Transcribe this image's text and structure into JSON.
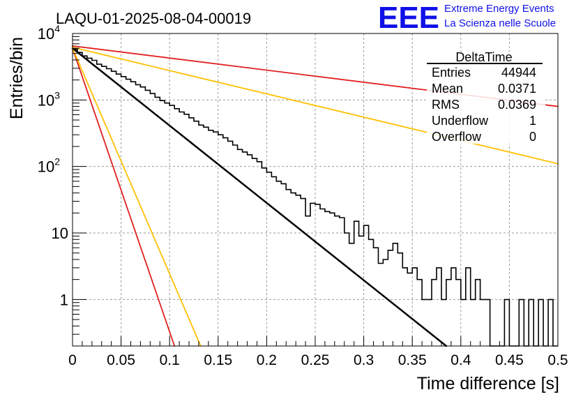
{
  "header": {
    "run_title": "LAQU-01-2025-08-04-00019",
    "logo_text": "EEE",
    "logo_line1": "Extreme Energy Events",
    "logo_line2": "La Scienza nelle Scuole",
    "logo_color": "#1010e8"
  },
  "stats_box": {
    "title": "DeltaTime",
    "rows": [
      {
        "label": "Entries",
        "value": "44944"
      },
      {
        "label": "Mean",
        "value": "0.0371"
      },
      {
        "label": "RMS",
        "value": "0.0369"
      },
      {
        "label": "Underflow",
        "value": "1"
      },
      {
        "label": "Overflow",
        "value": "0"
      }
    ]
  },
  "chart_data": {
    "type": "line",
    "title": "LAQU-01-2025-08-04-00019",
    "xlabel": "Time difference [s]",
    "ylabel": "Entries/bin",
    "xlim": [
      0,
      0.5
    ],
    "ylim": [
      0.2,
      10000
    ],
    "yscale": "log",
    "grid": true,
    "x_ticks": [
      "0",
      "0.05",
      "0.1",
      "0.15",
      "0.2",
      "0.25",
      "0.3",
      "0.35",
      "0.4",
      "0.45",
      "0.5"
    ],
    "y_ticks": [
      {
        "value": 1,
        "label": "1"
      },
      {
        "value": 10,
        "label": "10"
      },
      {
        "value": 100,
        "label": "10",
        "exp": "2"
      },
      {
        "value": 1000,
        "label": "10",
        "exp": "3"
      },
      {
        "value": 10000,
        "label": "10",
        "exp": "4"
      }
    ],
    "histogram": {
      "bin_width": 0.005,
      "color": "#000000",
      "counts": [
        5800,
        5200,
        4600,
        4250,
        3950,
        3450,
        3200,
        2950,
        2700,
        2450,
        2250,
        2050,
        1880,
        1700,
        1570,
        1400,
        1250,
        1100,
        980,
        900,
        830,
        740,
        660,
        610,
        540,
        480,
        420,
        390,
        350,
        330,
        300,
        270,
        240,
        210,
        180,
        165,
        150,
        132,
        118,
        95,
        82,
        70,
        60,
        55,
        45,
        40,
        37,
        33,
        18,
        28,
        27,
        23,
        21,
        20,
        18,
        17,
        10,
        7,
        15,
        9,
        13,
        8,
        6,
        3.5,
        4,
        5.5,
        7,
        5,
        3,
        2.5,
        3,
        2,
        1,
        1,
        2,
        3,
        1,
        2,
        3,
        2,
        1,
        3,
        1,
        2,
        1,
        1,
        0,
        0,
        0,
        1,
        0,
        0,
        1,
        0,
        1,
        0,
        1,
        0,
        1,
        0
      ]
    },
    "curves": [
      {
        "color": "#000000",
        "width": 2.5,
        "x": [
          0,
          0.385
        ],
        "y": [
          6000,
          0.2
        ]
      },
      {
        "color": "#e02020",
        "width": 1.8,
        "x": [
          0,
          0.5
        ],
        "y": [
          6500,
          800
        ]
      },
      {
        "color": "#ffc000",
        "width": 1.8,
        "x": [
          0,
          0.5
        ],
        "y": [
          6200,
          110
        ]
      },
      {
        "color": "#e02020",
        "width": 1.8,
        "x": [
          0,
          0.105
        ],
        "y": [
          6000,
          0.2
        ]
      },
      {
        "color": "#ffc000",
        "width": 1.8,
        "x": [
          0,
          0.132
        ],
        "y": [
          6000,
          0.2
        ]
      }
    ]
  }
}
